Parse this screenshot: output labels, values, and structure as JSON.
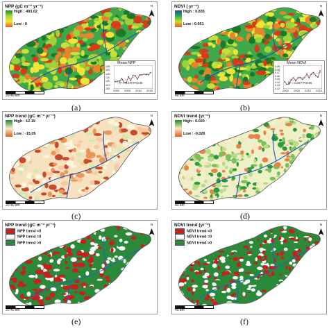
{
  "figure": {
    "panels": [
      {
        "id": "a",
        "title": "NPP (gC m⁻² yr⁻¹)",
        "legend_type": "continuous",
        "high_label": "High : 493.02",
        "low_label": "Low : 0",
        "ramp_colors": [
          "#1a8a2a",
          "#a8d83a",
          "#f2e437",
          "#e85a1a"
        ],
        "map_style": "green-base",
        "scale_label": "20  40 km",
        "panel_label": "(a)",
        "inset": {
          "title": "Mean NPP",
          "stat": "R² = 0.378 P<0.05",
          "y_ticks": [
            "135",
            "130",
            "125",
            "120",
            "115",
            "110",
            "105"
          ],
          "x_ticks": [
            "2000",
            "2005",
            "2010",
            "2015"
          ]
        }
      },
      {
        "id": "b",
        "title": "NDVI ( yr⁻¹)",
        "legend_type": "continuous",
        "high_label": "High : 0.835",
        "low_label": "Low : 0.051",
        "ramp_colors": [
          "#1a4fa0",
          "#2fae4a",
          "#c6e03a",
          "#e85a1a"
        ],
        "map_style": "green-base",
        "scale_label": "40 km",
        "panel_label": "(b)",
        "inset": {
          "title": "Mean NDVI",
          "stat": "R² = 0.257 P<0.05",
          "y_ticks": [
            "0.49",
            "0.48",
            "0.47",
            "0.46",
            "0.45",
            "0.44",
            "0.43",
            "0.42"
          ],
          "x_ticks": [
            "2000",
            "2005",
            "2010",
            "2015"
          ]
        }
      },
      {
        "id": "c",
        "title": "NPP trend (gC m⁻² yr⁻¹)",
        "legend_type": "continuous",
        "high_label": "High : 12.19",
        "low_label": "Low : -15.05",
        "ramp_colors": [
          "#1a8a2a",
          "#fbe9c8",
          "#e85a1a"
        ],
        "map_style": "cream-base",
        "scale_label": "20  40 km",
        "panel_label": "(c)"
      },
      {
        "id": "d",
        "title": "NDVI trend (yr⁻¹)",
        "legend_type": "continuous",
        "high_label": "High : 0.020",
        "low_label": "Low : -0.026",
        "ramp_colors": [
          "#1a8a2a",
          "#fbe9c8",
          "#e85a1a"
        ],
        "map_style": "cream-green",
        "scale_label": "40 km",
        "panel_label": "(d)"
      },
      {
        "id": "e",
        "title": "NPP trend (gC m⁻² yr⁻¹)",
        "legend_type": "categorical",
        "categories": [
          {
            "label": "NPP trend <0",
            "color": "#c81e1e"
          },
          {
            "label": "NPP trend =0",
            "color": "#ffffff"
          },
          {
            "label": "NPP trend >0",
            "color": "#2a8a3a"
          }
        ],
        "map_style": "cat-green",
        "scale_label": "20  40 km",
        "panel_label": "(e)"
      },
      {
        "id": "f",
        "title": "NDVI trend (yr⁻¹)",
        "legend_type": "categorical",
        "categories": [
          {
            "label": "NDVI trend <0",
            "color": "#c81e1e"
          },
          {
            "label": "NDVI trend =0",
            "color": "#ffffff"
          },
          {
            "label": "NDVI trend >0",
            "color": "#2a8a3a"
          }
        ],
        "map_style": "cat-mixed",
        "scale_label": "40 km",
        "panel_label": "(f)"
      }
    ],
    "north_letter": "N"
  }
}
